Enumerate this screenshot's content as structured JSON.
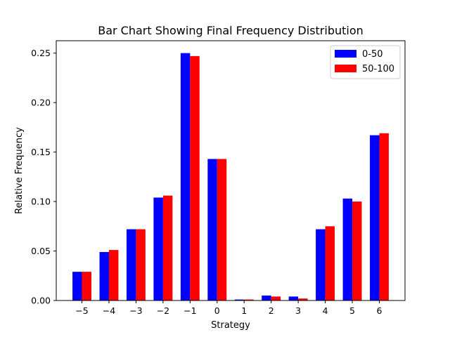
{
  "chart_data": {
    "type": "bar",
    "title": "Bar Chart Showing Final Frequency Distribution",
    "xlabel": "Strategy",
    "ylabel": "Relative Frequency",
    "categories": [
      "−5",
      "−4",
      "−3",
      "−2",
      "−1",
      "0",
      "1",
      "2",
      "3",
      "4",
      "5",
      "6"
    ],
    "x": [
      -5,
      -4,
      -3,
      -2,
      -1,
      0,
      1,
      2,
      3,
      4,
      5,
      6
    ],
    "series": [
      {
        "name": "0-50",
        "color": "#0000ff",
        "values": [
          0.029,
          0.049,
          0.072,
          0.104,
          0.25,
          0.143,
          0.001,
          0.005,
          0.004,
          0.072,
          0.103,
          0.167
        ]
      },
      {
        "name": "50-100",
        "color": "#ff0000",
        "values": [
          0.029,
          0.051,
          0.072,
          0.106,
          0.247,
          0.143,
          0.001,
          0.004,
          0.002,
          0.075,
          0.1,
          0.169
        ]
      }
    ],
    "xlim": [
      -5.95,
      6.95
    ],
    "ylim": [
      0,
      0.2625
    ],
    "yticks": [
      0.0,
      0.05,
      0.1,
      0.15,
      0.2,
      0.25
    ],
    "ytick_labels": [
      "0.00",
      "0.05",
      "0.10",
      "0.15",
      "0.20",
      "0.25"
    ],
    "grid": false,
    "legend_position": "top-right"
  }
}
